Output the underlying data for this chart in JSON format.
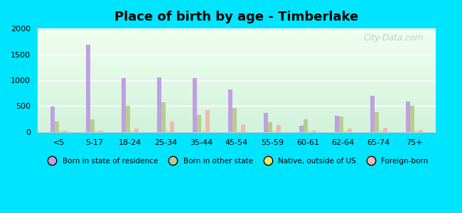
{
  "title": "Place of birth by age - Timberlake",
  "categories": [
    "<5",
    "5-17",
    "18-24",
    "25-34",
    "35-44",
    "45-54",
    "55-59",
    "60-61",
    "62-64",
    "65-74",
    "75+"
  ],
  "series": {
    "Born in state of residence": [
      490,
      1680,
      1040,
      1050,
      1040,
      820,
      370,
      120,
      310,
      700,
      590
    ],
    "Born in other state": [
      200,
      240,
      500,
      570,
      330,
      470,
      190,
      240,
      305,
      380,
      500
    ],
    "Native, outside of US": [
      20,
      20,
      30,
      30,
      30,
      25,
      20,
      20,
      20,
      20,
      30
    ],
    "Foreign-born": [
      30,
      30,
      70,
      210,
      420,
      150,
      130,
      20,
      65,
      80,
      40
    ]
  },
  "colors": {
    "Born in state of residence": "#c0a0e0",
    "Born in other state": "#b8cc90",
    "Native, outside of US": "#f0e860",
    "Foreign-born": "#f0b8b0"
  },
  "ylim": [
    0,
    2000
  ],
  "yticks": [
    0,
    500,
    1000,
    1500,
    2000
  ],
  "outer_background": "#00e5ff",
  "grid_color": "#e0e0e0",
  "watermark": "City-Data.com"
}
